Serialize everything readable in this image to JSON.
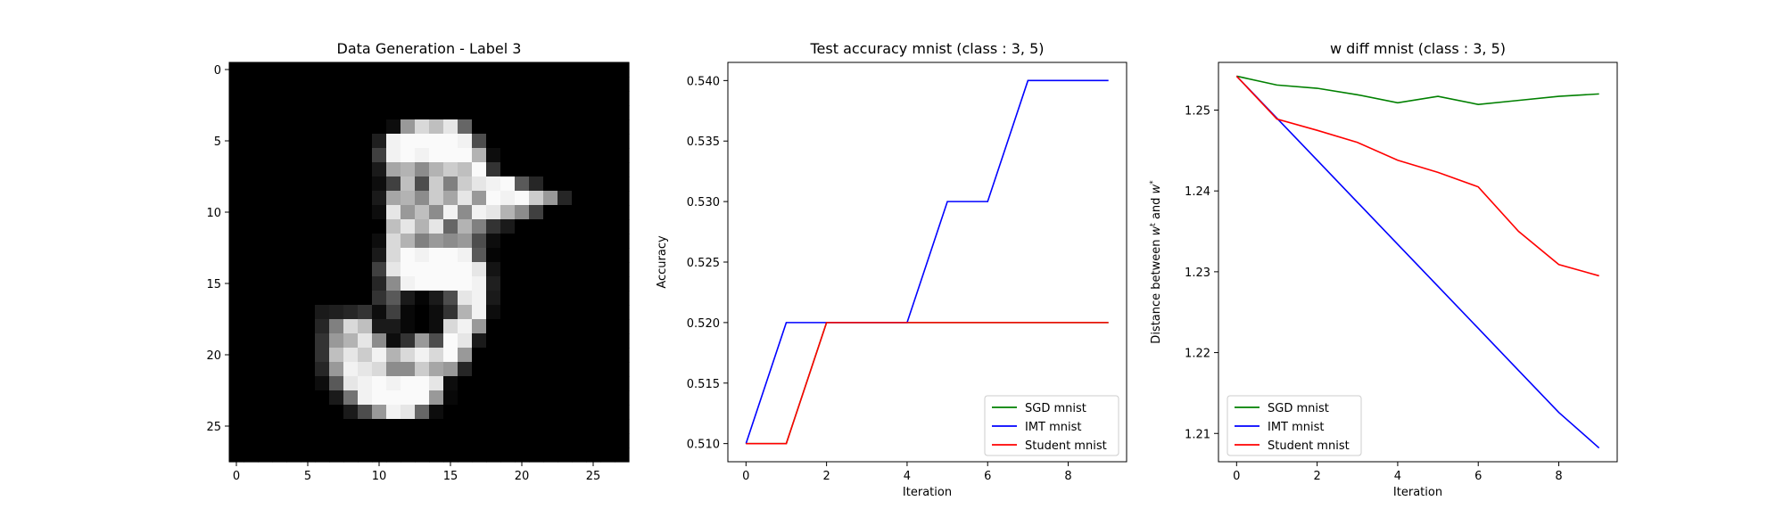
{
  "chart_data": [
    {
      "type": "heatmap",
      "title": "Data Generation - Label 3",
      "xlabel": "",
      "ylabel": "",
      "xlim": [
        -0.5,
        27.5
      ],
      "ylim": [
        27.5,
        -0.5
      ],
      "xticks": [
        0,
        5,
        10,
        15,
        20,
        25
      ],
      "yticks": [
        0,
        5,
        10,
        15,
        20,
        25
      ],
      "colormap": "gray",
      "pixels": [
        [
          0,
          0,
          0,
          0,
          0,
          0,
          0,
          0,
          0,
          0,
          0,
          0,
          0,
          0,
          0,
          0,
          0,
          0,
          0,
          0,
          0,
          0,
          0,
          0,
          0,
          0,
          0,
          0
        ],
        [
          0,
          0,
          0,
          0,
          0,
          0,
          0,
          0,
          0,
          0,
          0,
          0,
          0,
          0,
          0,
          0,
          0,
          0,
          0,
          0,
          0,
          0,
          0,
          0,
          0,
          0,
          0,
          0
        ],
        [
          0,
          0,
          0,
          0,
          0,
          0,
          0,
          0,
          0,
          0,
          0,
          0,
          0,
          0,
          0,
          0,
          0,
          0,
          0,
          0,
          0,
          0,
          0,
          0,
          0,
          0,
          0,
          0
        ],
        [
          0,
          0,
          0,
          0,
          0,
          0,
          0,
          0,
          0,
          0,
          0,
          0,
          0,
          0,
          0,
          0,
          0,
          0,
          0,
          0,
          0,
          0,
          0,
          0,
          0,
          0,
          0,
          0
        ],
        [
          0,
          0,
          0,
          0,
          0,
          0,
          0,
          0,
          0,
          0,
          0,
          0.05,
          0.6,
          0.85,
          0.75,
          0.9,
          0.4,
          0,
          0,
          0,
          0,
          0,
          0,
          0,
          0,
          0,
          0,
          0
        ],
        [
          0,
          0,
          0,
          0,
          0,
          0,
          0,
          0,
          0,
          0,
          0.12,
          0.95,
          0.98,
          0.98,
          0.98,
          0.98,
          0.95,
          0.3,
          0,
          0,
          0,
          0,
          0,
          0,
          0,
          0,
          0,
          0
        ],
        [
          0,
          0,
          0,
          0,
          0,
          0,
          0,
          0,
          0,
          0,
          0.25,
          0.95,
          0.98,
          0.95,
          0.98,
          0.98,
          0.98,
          0.7,
          0.05,
          0,
          0,
          0,
          0,
          0,
          0,
          0,
          0,
          0
        ],
        [
          0,
          0,
          0,
          0,
          0,
          0,
          0,
          0,
          0,
          0,
          0.1,
          0.65,
          0.7,
          0.55,
          0.7,
          0.8,
          0.75,
          0.98,
          0.2,
          0,
          0,
          0,
          0,
          0,
          0,
          0,
          0,
          0
        ],
        [
          0,
          0,
          0,
          0,
          0,
          0,
          0,
          0,
          0,
          0,
          0.05,
          0.25,
          0.75,
          0.3,
          0.8,
          0.5,
          0.8,
          0.9,
          0.95,
          0.98,
          0.35,
          0.15,
          0,
          0,
          0,
          0,
          0,
          0
        ],
        [
          0,
          0,
          0,
          0,
          0,
          0,
          0,
          0,
          0,
          0,
          0.1,
          0.65,
          0.7,
          0.55,
          0.8,
          0.65,
          0.9,
          0.6,
          0.98,
          0.95,
          0.98,
          0.8,
          0.6,
          0.15,
          0,
          0,
          0,
          0
        ],
        [
          0,
          0,
          0,
          0,
          0,
          0,
          0,
          0,
          0,
          0,
          0.05,
          0.9,
          0.6,
          0.75,
          0.55,
          0.95,
          0.55,
          0.95,
          0.9,
          0.7,
          0.55,
          0.25,
          0,
          0,
          0,
          0,
          0,
          0
        ],
        [
          0,
          0,
          0,
          0,
          0,
          0,
          0,
          0,
          0,
          0,
          0,
          0.75,
          0.9,
          0.7,
          0.9,
          0.4,
          0.7,
          0.5,
          0.2,
          0.1,
          0,
          0,
          0,
          0,
          0,
          0,
          0,
          0
        ],
        [
          0,
          0,
          0,
          0,
          0,
          0,
          0,
          0,
          0,
          0,
          0.05,
          0.85,
          0.7,
          0.5,
          0.6,
          0.55,
          0.6,
          0.3,
          0.05,
          0,
          0,
          0,
          0,
          0,
          0,
          0,
          0,
          0
        ],
        [
          0,
          0,
          0,
          0,
          0,
          0,
          0,
          0,
          0,
          0,
          0.1,
          0.85,
          0.98,
          0.95,
          0.98,
          0.98,
          0.95,
          0.35,
          0.02,
          0,
          0,
          0,
          0,
          0,
          0,
          0,
          0,
          0
        ],
        [
          0,
          0,
          0,
          0,
          0,
          0,
          0,
          0,
          0,
          0,
          0.25,
          0.9,
          0.98,
          0.98,
          0.98,
          0.98,
          0.98,
          0.9,
          0.08,
          0,
          0,
          0,
          0,
          0,
          0,
          0,
          0,
          0
        ],
        [
          0,
          0,
          0,
          0,
          0,
          0,
          0,
          0,
          0,
          0,
          0.15,
          0.55,
          0.95,
          0.98,
          0.98,
          0.98,
          0.98,
          0.95,
          0.12,
          0,
          0,
          0,
          0,
          0,
          0,
          0,
          0,
          0
        ],
        [
          0,
          0,
          0,
          0,
          0,
          0,
          0,
          0,
          0,
          0,
          0.2,
          0.35,
          0.1,
          0.02,
          0.1,
          0.3,
          0.9,
          0.95,
          0.1,
          0,
          0,
          0,
          0,
          0,
          0,
          0,
          0,
          0
        ],
        [
          0,
          0,
          0,
          0,
          0,
          0,
          0.1,
          0.12,
          0.15,
          0.2,
          0.05,
          0.25,
          0.03,
          0,
          0.05,
          0.2,
          0.7,
          0.95,
          0.05,
          0,
          0,
          0,
          0,
          0,
          0,
          0,
          0,
          0
        ],
        [
          0,
          0,
          0,
          0,
          0,
          0,
          0.15,
          0.5,
          0.85,
          0.75,
          0.1,
          0.1,
          0.03,
          0,
          0.05,
          0.85,
          0.95,
          0.6,
          0,
          0,
          0,
          0,
          0,
          0,
          0,
          0,
          0,
          0
        ],
        [
          0,
          0,
          0,
          0,
          0,
          0,
          0.2,
          0.6,
          0.7,
          0.9,
          0.55,
          0.05,
          0.2,
          0.6,
          0.3,
          0.98,
          0.9,
          0.1,
          0,
          0,
          0,
          0,
          0,
          0,
          0,
          0,
          0,
          0
        ],
        [
          0,
          0,
          0,
          0,
          0,
          0,
          0.2,
          0.75,
          0.9,
          0.8,
          0.95,
          0.7,
          0.85,
          0.95,
          0.85,
          0.98,
          0.6,
          0,
          0,
          0,
          0,
          0,
          0,
          0,
          0,
          0,
          0,
          0
        ],
        [
          0,
          0,
          0,
          0,
          0,
          0,
          0.15,
          0.6,
          0.95,
          0.9,
          0.85,
          0.55,
          0.55,
          0.8,
          0.65,
          0.6,
          0.15,
          0,
          0,
          0,
          0,
          0,
          0,
          0,
          0,
          0,
          0,
          0
        ],
        [
          0,
          0,
          0,
          0,
          0,
          0,
          0.05,
          0.35,
          0.9,
          0.95,
          0.98,
          0.95,
          0.98,
          0.98,
          0.9,
          0.05,
          0,
          0,
          0,
          0,
          0,
          0,
          0,
          0,
          0,
          0,
          0,
          0
        ],
        [
          0,
          0,
          0,
          0,
          0,
          0,
          0,
          0.1,
          0.45,
          0.95,
          0.98,
          0.98,
          0.98,
          0.98,
          0.6,
          0.03,
          0,
          0,
          0,
          0,
          0,
          0,
          0,
          0,
          0,
          0,
          0,
          0
        ],
        [
          0,
          0,
          0,
          0,
          0,
          0,
          0,
          0,
          0.1,
          0.3,
          0.6,
          0.95,
          0.9,
          0.4,
          0.05,
          0,
          0,
          0,
          0,
          0,
          0,
          0,
          0,
          0,
          0,
          0,
          0,
          0
        ],
        [
          0,
          0,
          0,
          0,
          0,
          0,
          0,
          0,
          0,
          0,
          0,
          0,
          0,
          0,
          0,
          0,
          0,
          0,
          0,
          0,
          0,
          0,
          0,
          0,
          0,
          0,
          0,
          0
        ],
        [
          0,
          0,
          0,
          0,
          0,
          0,
          0,
          0,
          0,
          0,
          0,
          0,
          0,
          0,
          0,
          0,
          0,
          0,
          0,
          0,
          0,
          0,
          0,
          0,
          0,
          0,
          0,
          0
        ],
        [
          0,
          0,
          0,
          0,
          0,
          0,
          0,
          0,
          0,
          0,
          0,
          0,
          0,
          0,
          0,
          0,
          0,
          0,
          0,
          0,
          0,
          0,
          0,
          0,
          0,
          0,
          0,
          0
        ]
      ]
    },
    {
      "type": "line",
      "title": "Test accuracy mnist (class : 3, 5)",
      "xlabel": "Iteration",
      "ylabel": "Accuracy",
      "xlim": [
        -0.45,
        9.45
      ],
      "ylim": [
        0.5085,
        0.5415
      ],
      "xticks": [
        0,
        2,
        4,
        6,
        8
      ],
      "yticks": [
        0.51,
        0.515,
        0.52,
        0.525,
        0.53,
        0.535,
        0.54
      ],
      "ytick_labels": [
        "0.510",
        "0.515",
        "0.520",
        "0.525",
        "0.530",
        "0.535",
        "0.540"
      ],
      "legend_position": "lower-right",
      "x": [
        0,
        1,
        2,
        3,
        4,
        5,
        6,
        7,
        8,
        9
      ],
      "series": [
        {
          "name": "SGD mnist",
          "color": "#008000",
          "values": [
            0.51,
            0.51,
            0.52,
            0.52,
            0.52,
            0.52,
            0.52,
            0.52,
            0.52,
            0.52
          ]
        },
        {
          "name": "IMT mnist",
          "color": "#0000ff",
          "values": [
            0.51,
            0.52,
            0.52,
            0.52,
            0.52,
            0.53,
            0.53,
            0.54,
            0.54,
            0.54
          ]
        },
        {
          "name": "Student mnist",
          "color": "#ff0000",
          "values": [
            0.51,
            0.51,
            0.52,
            0.52,
            0.52,
            0.52,
            0.52,
            0.52,
            0.52,
            0.52
          ]
        }
      ]
    },
    {
      "type": "line",
      "title": "w diff mnist (class : 3, 5)",
      "xlabel": "Iteration",
      "ylabel_parts": [
        "Distance between ",
        "w",
        "t",
        " and ",
        "w",
        "*"
      ],
      "xlim": [
        -0.45,
        9.45
      ],
      "ylim": [
        1.2065,
        1.2559
      ],
      "xticks": [
        0,
        2,
        4,
        6,
        8
      ],
      "yticks": [
        1.21,
        1.22,
        1.23,
        1.24,
        1.25
      ],
      "ytick_labels": [
        "1.21",
        "1.22",
        "1.23",
        "1.24",
        "1.25"
      ],
      "legend_position": "lower-left",
      "x": [
        0,
        1,
        2,
        3,
        4,
        5,
        6,
        7,
        8,
        9
      ],
      "series": [
        {
          "name": "SGD mnist",
          "color": "#008000",
          "values": [
            1.2542,
            1.2531,
            1.2527,
            1.2519,
            1.2509,
            1.2517,
            1.2507,
            1.2512,
            1.2517,
            1.252
          ]
        },
        {
          "name": "IMT mnist",
          "color": "#0000ff",
          "values": [
            1.2542,
            1.249,
            1.2438,
            1.2386,
            1.2334,
            1.2282,
            1.223,
            1.2178,
            1.2126,
            1.2082
          ]
        },
        {
          "name": "Student mnist",
          "color": "#ff0000",
          "values": [
            1.2542,
            1.2489,
            1.2475,
            1.246,
            1.2438,
            1.2423,
            1.2405,
            1.235,
            1.2309,
            1.2295
          ]
        }
      ]
    }
  ]
}
